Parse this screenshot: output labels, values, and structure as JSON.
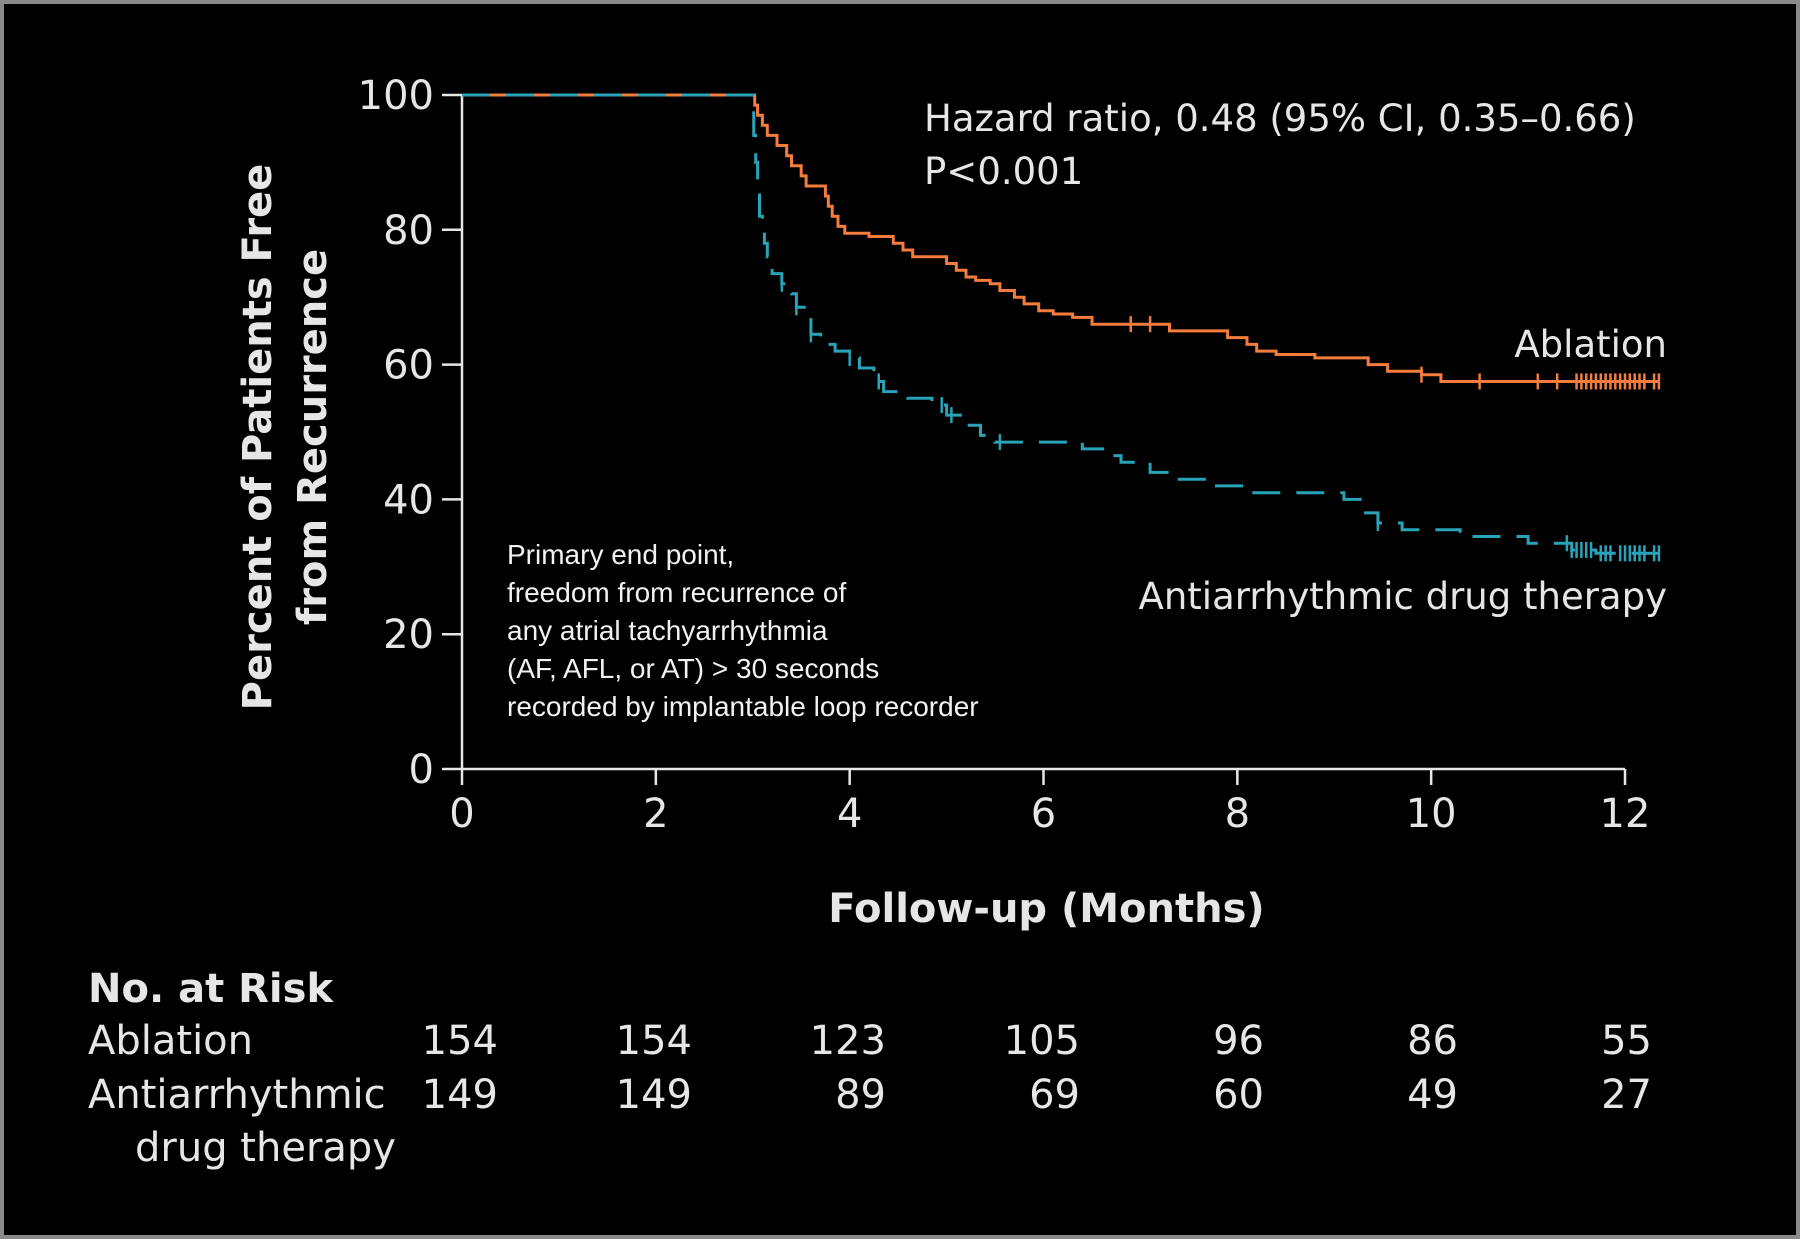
{
  "chart_data": {
    "type": "line",
    "subtype": "kaplan-meier",
    "title": "",
    "xlabel": "Follow-up (Months)",
    "ylabel_lines": [
      "Percent of Patients Free",
      "from Recurrence"
    ],
    "xlim": [
      0,
      12
    ],
    "ylim": [
      0,
      100
    ],
    "xticks": [
      0,
      2,
      4,
      6,
      8,
      10,
      12
    ],
    "yticks": [
      0,
      20,
      40,
      60,
      80,
      100
    ],
    "grid": false,
    "annotation_lines": [
      "Hazard ratio, 0.48 (95% CI, 0.35–0.66)",
      "P<0.001"
    ],
    "note_lines": [
      "Primary end point,",
      "freedom from recurrence of",
      "any atrial tachyarrhythmia",
      "(AF, AFL, or AT) > 30 seconds",
      "recorded by implantable loop recorder"
    ],
    "series": [
      {
        "name": "Ablation",
        "label_lines": [
          "Ablation"
        ],
        "color": "#f47c3c",
        "dashed": false,
        "points": [
          [
            0,
            100
          ],
          [
            3.0,
            100
          ],
          [
            3.02,
            98.5
          ],
          [
            3.05,
            97
          ],
          [
            3.1,
            95.5
          ],
          [
            3.15,
            94
          ],
          [
            3.25,
            92.5
          ],
          [
            3.35,
            91
          ],
          [
            3.4,
            89.5
          ],
          [
            3.5,
            88
          ],
          [
            3.55,
            86.5
          ],
          [
            3.75,
            85
          ],
          [
            3.78,
            83.5
          ],
          [
            3.82,
            82
          ],
          [
            3.88,
            80.5
          ],
          [
            3.95,
            79.5
          ],
          [
            4.2,
            79
          ],
          [
            4.45,
            78
          ],
          [
            4.55,
            77
          ],
          [
            4.65,
            76
          ],
          [
            5.0,
            75
          ],
          [
            5.1,
            74
          ],
          [
            5.2,
            73
          ],
          [
            5.3,
            72.5
          ],
          [
            5.45,
            72
          ],
          [
            5.55,
            71
          ],
          [
            5.7,
            70
          ],
          [
            5.8,
            69
          ],
          [
            5.95,
            68
          ],
          [
            6.1,
            67.5
          ],
          [
            6.3,
            67
          ],
          [
            6.5,
            66
          ],
          [
            7.3,
            65
          ],
          [
            7.9,
            64
          ],
          [
            8.1,
            63
          ],
          [
            8.2,
            62
          ],
          [
            8.4,
            61.5
          ],
          [
            8.8,
            61
          ],
          [
            9.35,
            60
          ],
          [
            9.55,
            59
          ],
          [
            9.9,
            58.5
          ],
          [
            10.1,
            57.5
          ],
          [
            12.35,
            57.5
          ]
        ],
        "censored_x": [
          6.9,
          7.1,
          9.9,
          10.5,
          11.1,
          11.3,
          11.5,
          11.55,
          11.6,
          11.65,
          11.7,
          11.75,
          11.8,
          11.85,
          11.9,
          11.95,
          12.0,
          12.05,
          12.1,
          12.15,
          12.2,
          12.3,
          12.35
        ]
      },
      {
        "name": "Antiarrhythmic drug therapy",
        "label_lines": [
          "Antiarrhythmic drug therapy"
        ],
        "color": "#29a3b8",
        "dashed": true,
        "points": [
          [
            0,
            100
          ],
          [
            3.0,
            100
          ],
          [
            3.01,
            94
          ],
          [
            3.03,
            90
          ],
          [
            3.05,
            86
          ],
          [
            3.07,
            82
          ],
          [
            3.1,
            80
          ],
          [
            3.12,
            78
          ],
          [
            3.15,
            76
          ],
          [
            3.2,
            73.5
          ],
          [
            3.3,
            72
          ],
          [
            3.4,
            70.5
          ],
          [
            3.45,
            68.5
          ],
          [
            3.55,
            67
          ],
          [
            3.6,
            64.5
          ],
          [
            3.7,
            63
          ],
          [
            3.85,
            62
          ],
          [
            4.0,
            61
          ],
          [
            4.1,
            59.5
          ],
          [
            4.25,
            57.5
          ],
          [
            4.35,
            56
          ],
          [
            4.6,
            55
          ],
          [
            4.85,
            54
          ],
          [
            5.0,
            52.5
          ],
          [
            5.2,
            51
          ],
          [
            5.35,
            49.5
          ],
          [
            5.5,
            48.5
          ],
          [
            6.4,
            47.5
          ],
          [
            6.65,
            46.5
          ],
          [
            6.8,
            45.5
          ],
          [
            7.1,
            44
          ],
          [
            7.4,
            43
          ],
          [
            7.7,
            42
          ],
          [
            8.1,
            41
          ],
          [
            9.1,
            40
          ],
          [
            9.3,
            38
          ],
          [
            9.45,
            36.5
          ],
          [
            9.7,
            35.5
          ],
          [
            10.3,
            34.5
          ],
          [
            11.0,
            33.5
          ],
          [
            11.45,
            32.5
          ],
          [
            11.7,
            32
          ],
          [
            12.35,
            32
          ]
        ],
        "censored_x": [
          3.3,
          3.45,
          3.6,
          4.0,
          4.3,
          4.95,
          5.05,
          5.55,
          9.45,
          11.4,
          11.45,
          11.5,
          11.55,
          11.6,
          11.65,
          11.75,
          11.8,
          11.85,
          11.95,
          12.0,
          12.05,
          12.1,
          12.15,
          12.2,
          12.3,
          12.35
        ]
      }
    ],
    "risk_table": {
      "header": "No. at Risk",
      "times": [
        0,
        2,
        4,
        6,
        8,
        10,
        12
      ],
      "rows": [
        {
          "label_lines": [
            "Ablation"
          ],
          "values": [
            "154",
            "154",
            "123",
            "105",
            "96",
            "86",
            "55"
          ]
        },
        {
          "label_lines": [
            "Antiarrhythmic",
            "drug therapy"
          ],
          "values": [
            "149",
            "149",
            "89",
            "69",
            "60",
            "49",
            "27"
          ]
        }
      ]
    }
  }
}
